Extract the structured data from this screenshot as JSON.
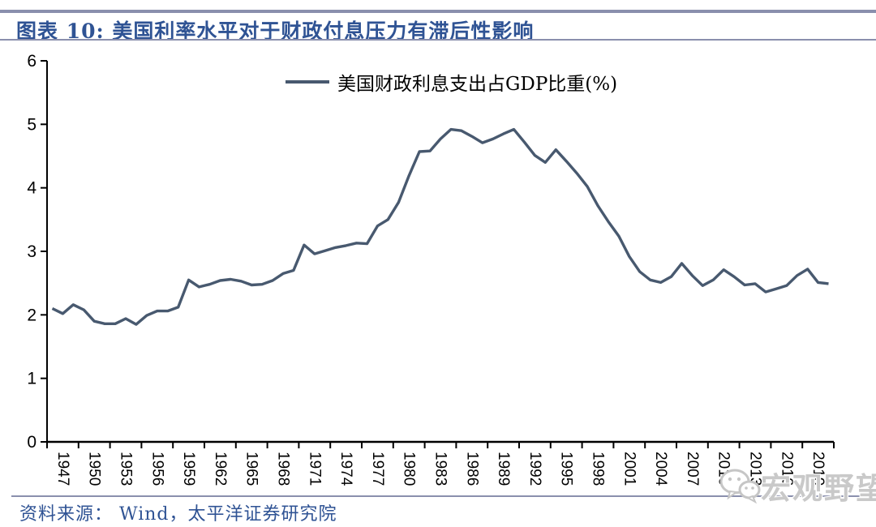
{
  "header": {
    "title": "图表 10:  美国利率水平对于财政付息压力有滞后性影响"
  },
  "legend": {
    "label": "美国财政利息支出占GDP比重(%)"
  },
  "footer": {
    "source": "资料来源： Wind，太平洋证券研究院"
  },
  "watermark": {
    "icon": "wechat-icon",
    "label": "宏观野望"
  },
  "colors": {
    "line": "#48596F",
    "title_text": "#2F5394",
    "rule": "#8A8FAD",
    "axis": "#000000",
    "watermark": "#C9C9C9"
  },
  "chart_data": {
    "type": "line",
    "title": "",
    "xlabel": "",
    "ylabel": "",
    "ylim": [
      0,
      6
    ],
    "yticks": [
      0,
      1,
      2,
      3,
      4,
      5,
      6
    ],
    "grid": false,
    "legend_position": "top-center",
    "xtick_labels": [
      "1947",
      "1950",
      "1953",
      "1956",
      "1959",
      "1962",
      "1965",
      "1968",
      "1971",
      "1974",
      "1977",
      "1980",
      "1983",
      "1986",
      "1989",
      "1992",
      "1995",
      "1998",
      "2001",
      "2004",
      "2007",
      "2010",
      "2013",
      "2016",
      "2019"
    ],
    "x_tick_interval_years": 3,
    "series": [
      {
        "name": "美国财政利息支出占GDP比重(%)",
        "x": [
          1947,
          1948,
          1949,
          1950,
          1951,
          1952,
          1953,
          1954,
          1955,
          1956,
          1957,
          1958,
          1959,
          1960,
          1961,
          1962,
          1963,
          1964,
          1965,
          1966,
          1967,
          1968,
          1969,
          1970,
          1971,
          1972,
          1973,
          1974,
          1975,
          1976,
          1977,
          1978,
          1979,
          1980,
          1981,
          1982,
          1983,
          1984,
          1985,
          1986,
          1987,
          1988,
          1989,
          1990,
          1991,
          1992,
          1993,
          1994,
          1995,
          1996,
          1997,
          1998,
          1999,
          2000,
          2001,
          2002,
          2003,
          2004,
          2005,
          2006,
          2007,
          2008,
          2009,
          2010,
          2011,
          2012,
          2013,
          2014,
          2015,
          2016,
          2017,
          2018,
          2019,
          2020,
          2021
        ],
        "values": [
          2.1,
          2.02,
          2.16,
          2.08,
          1.9,
          1.86,
          1.86,
          1.94,
          1.85,
          1.99,
          2.06,
          2.06,
          2.12,
          2.55,
          2.44,
          2.48,
          2.54,
          2.56,
          2.53,
          2.47,
          2.48,
          2.54,
          2.65,
          2.7,
          3.1,
          2.96,
          3.01,
          3.06,
          3.09,
          3.13,
          3.12,
          3.4,
          3.5,
          3.77,
          4.19,
          4.57,
          4.58,
          4.77,
          4.92,
          4.9,
          4.81,
          4.71,
          4.77,
          4.85,
          4.92,
          4.72,
          4.51,
          4.4,
          4.6,
          4.42,
          4.23,
          4.02,
          3.72,
          3.47,
          3.24,
          2.92,
          2.68,
          2.55,
          2.51,
          2.6,
          2.81,
          2.62,
          2.46,
          2.55,
          2.71,
          2.6,
          2.47,
          2.49,
          2.36,
          2.41,
          2.46,
          2.62,
          2.72,
          2.51,
          2.49
        ]
      }
    ]
  }
}
